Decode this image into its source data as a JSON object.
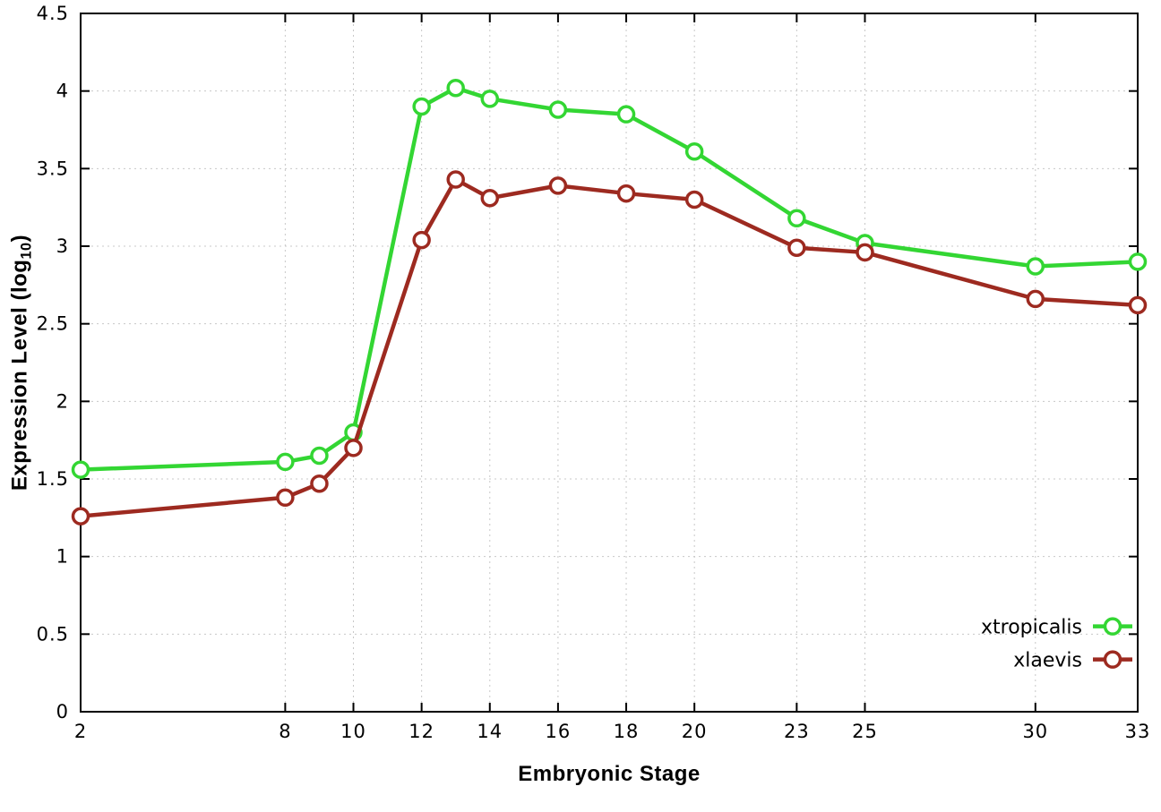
{
  "chart_data": {
    "type": "line",
    "title": "",
    "xlabel": "Embryonic Stage",
    "ylabel_main": "Expression Level (log",
    "ylabel_sub": "10",
    "ylabel_close": ")",
    "xlim": [
      2,
      33
    ],
    "ylim": [
      0,
      4.5
    ],
    "grid": true,
    "grid_style": "dotted",
    "legend_position": "bottom-right",
    "xticks": [
      2,
      8,
      10,
      12,
      14,
      16,
      18,
      20,
      23,
      25,
      30,
      33
    ],
    "yticks": [
      0,
      0.5,
      1,
      1.5,
      2,
      2.5,
      3,
      3.5,
      4,
      4.5
    ],
    "ytick_labels": [
      "0",
      "0.5",
      "1",
      "1.5",
      "2",
      "2.5",
      "3",
      "3.5",
      "4",
      "4.5"
    ],
    "x": [
      2,
      8,
      9,
      10,
      12,
      13,
      14,
      16,
      18,
      20,
      23,
      25,
      30,
      33
    ],
    "series": [
      {
        "name": "xtropicalis",
        "color": "#33d633",
        "values": [
          1.56,
          1.61,
          1.65,
          1.8,
          3.9,
          4.02,
          3.95,
          3.88,
          3.85,
          3.61,
          3.18,
          3.02,
          2.87,
          2.9
        ]
      },
      {
        "name": "xlaevis",
        "color": "#9d2a20",
        "values": [
          1.26,
          1.38,
          1.47,
          1.7,
          3.04,
          3.43,
          3.31,
          3.39,
          3.34,
          3.3,
          2.99,
          2.96,
          2.66,
          2.62
        ]
      }
    ],
    "colors": {
      "axis": "#000000",
      "grid": "#c8c8c8",
      "marker_fill": "#ffffff",
      "background": "#ffffff"
    }
  }
}
